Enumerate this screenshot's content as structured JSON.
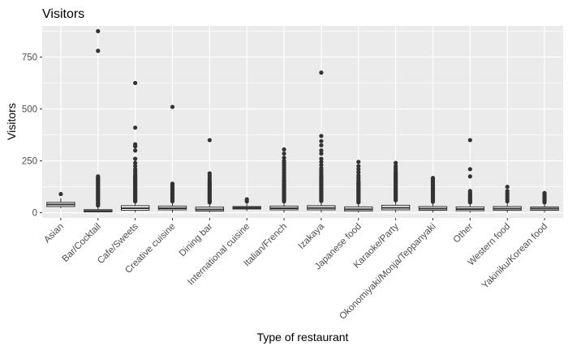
{
  "chart_data": {
    "type": "box",
    "title": "Visitors",
    "xlabel": "Type of restaurant",
    "ylabel": "Visitors",
    "ylim": [
      -25,
      900
    ],
    "yticks": [
      0,
      250,
      500,
      750
    ],
    "grid": true,
    "legend": "none",
    "colors": {
      "panel": "#ebebeb",
      "grid": "#ffffff",
      "box_fill": "#ffffff",
      "box_line": "#333333",
      "tick_text": "#4d4d4d"
    },
    "categories": [
      "Asian",
      "Bar/Cocktail",
      "Cafe/Sweets",
      "Creative cuisine",
      "Dining bar",
      "International cuisine",
      "Italian/French",
      "Izakaya",
      "Japanese food",
      "Karaoke/Party",
      "Okonomiyaki/Monja/Teppanyaki",
      "Other",
      "Western food",
      "Yakiniku/Korean food"
    ],
    "boxes": [
      {
        "min": 22,
        "q1": 30,
        "median": 40,
        "q3": 50,
        "max": 70,
        "outliers": [
          90
        ]
      },
      {
        "min": 1,
        "q1": 4,
        "median": 8,
        "q3": 15,
        "max": 30,
        "outliers": [
          35,
          40,
          45,
          50,
          55,
          60,
          65,
          70,
          75,
          80,
          85,
          90,
          95,
          100,
          105,
          110,
          115,
          120,
          125,
          130,
          135,
          140,
          145,
          150,
          155,
          160,
          165,
          170,
          175,
          780,
          875
        ]
      },
      {
        "min": 1,
        "q1": 12,
        "median": 22,
        "q3": 34,
        "max": 50,
        "outliers": [
          55,
          60,
          65,
          70,
          75,
          80,
          85,
          90,
          95,
          100,
          105,
          110,
          115,
          120,
          125,
          130,
          135,
          140,
          145,
          150,
          155,
          160,
          165,
          170,
          175,
          180,
          190,
          200,
          210,
          225,
          240,
          260,
          300,
          320,
          330,
          410,
          625
        ]
      },
      {
        "min": 1,
        "q1": 14,
        "median": 22,
        "q3": 32,
        "max": 50,
        "outliers": [
          55,
          60,
          65,
          70,
          75,
          80,
          85,
          90,
          95,
          100,
          105,
          110,
          115,
          120,
          125,
          130,
          135,
          140,
          510
        ]
      },
      {
        "min": 1,
        "q1": 8,
        "median": 16,
        "q3": 27,
        "max": 45,
        "outliers": [
          50,
          55,
          60,
          65,
          70,
          75,
          80,
          85,
          90,
          95,
          100,
          105,
          110,
          115,
          120,
          125,
          130,
          135,
          140,
          145,
          150,
          160,
          170,
          180,
          190,
          350
        ]
      },
      {
        "min": 8,
        "q1": 18,
        "median": 24,
        "q3": 30,
        "max": 45,
        "outliers": [
          55,
          65
        ]
      },
      {
        "min": 1,
        "q1": 14,
        "median": 22,
        "q3": 32,
        "max": 50,
        "outliers": [
          55,
          60,
          65,
          70,
          75,
          80,
          85,
          90,
          95,
          100,
          105,
          110,
          115,
          120,
          125,
          130,
          135,
          140,
          145,
          150,
          155,
          160,
          170,
          180,
          190,
          200,
          210,
          220,
          230,
          240,
          250,
          265,
          285,
          305
        ]
      },
      {
        "min": 1,
        "q1": 14,
        "median": 23,
        "q3": 34,
        "max": 52,
        "outliers": [
          57,
          62,
          67,
          72,
          77,
          82,
          87,
          92,
          97,
          102,
          107,
          112,
          117,
          122,
          127,
          132,
          137,
          142,
          147,
          152,
          157,
          162,
          167,
          172,
          177,
          185,
          195,
          205,
          215,
          230,
          245,
          260,
          285,
          300,
          325,
          345,
          370,
          675
        ]
      },
      {
        "min": 1,
        "q1": 9,
        "median": 17,
        "q3": 28,
        "max": 45,
        "outliers": [
          50,
          55,
          60,
          65,
          70,
          75,
          80,
          85,
          90,
          95,
          100,
          105,
          110,
          115,
          120,
          125,
          130,
          135,
          140,
          145,
          150,
          160,
          170,
          180,
          195,
          210,
          225,
          245
        ]
      },
      {
        "min": 1,
        "q1": 14,
        "median": 24,
        "q3": 36,
        "max": 55,
        "outliers": [
          60,
          65,
          70,
          75,
          80,
          85,
          90,
          95,
          100,
          105,
          110,
          115,
          120,
          125,
          130,
          135,
          140,
          145,
          150,
          155,
          160,
          165,
          170,
          175,
          180,
          185,
          190,
          195,
          205,
          215,
          225,
          240
        ]
      },
      {
        "min": 1,
        "q1": 12,
        "median": 20,
        "q3": 30,
        "max": 48,
        "outliers": [
          53,
          58,
          63,
          68,
          73,
          78,
          83,
          88,
          93,
          98,
          103,
          108,
          113,
          118,
          123,
          128,
          133,
          138,
          143,
          148,
          153,
          158,
          163,
          168
        ]
      },
      {
        "min": 1,
        "q1": 10,
        "median": 18,
        "q3": 28,
        "max": 45,
        "outliers": [
          50,
          55,
          60,
          65,
          70,
          75,
          80,
          85,
          90,
          95,
          105,
          175,
          210,
          350
        ]
      },
      {
        "min": 1,
        "q1": 12,
        "median": 20,
        "q3": 30,
        "max": 48,
        "outliers": [
          55,
          65,
          75,
          85,
          95,
          105,
          125
        ]
      },
      {
        "min": 1,
        "q1": 12,
        "median": 20,
        "q3": 28,
        "max": 45,
        "outliers": [
          50,
          55,
          60,
          65,
          70,
          75,
          80,
          85,
          90,
          95
        ]
      }
    ]
  }
}
